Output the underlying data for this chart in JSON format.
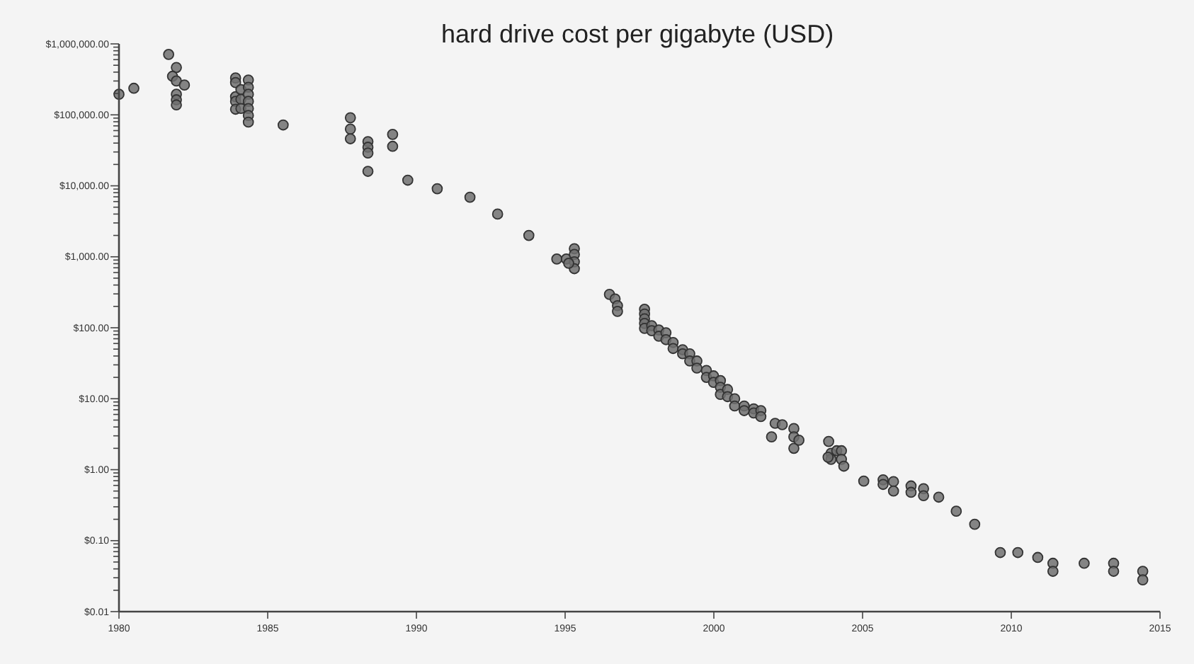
{
  "chart_data": {
    "type": "scatter",
    "title": "hard drive cost per gigabyte (USD)",
    "log": "y",
    "grid": false,
    "marker": "circle",
    "xlim": [
      1980,
      2015
    ],
    "xticks": [
      1980,
      1985,
      1990,
      1995,
      2000,
      2005,
      2010,
      2015
    ],
    "ylim": [
      0.01,
      1000000
    ],
    "yticks": [
      {
        "value": 0.01,
        "label": "$0.01"
      },
      {
        "value": 0.02,
        "label": null
      },
      {
        "value": 0.03,
        "label": null
      },
      {
        "value": 0.04,
        "label": null
      },
      {
        "value": 0.05,
        "label": null
      },
      {
        "value": 0.06,
        "label": null
      },
      {
        "value": 0.07,
        "label": null
      },
      {
        "value": 0.08,
        "label": null
      },
      {
        "value": 0.09,
        "label": null
      },
      {
        "value": 0.1,
        "label": "$0.10"
      },
      {
        "value": 0.2,
        "label": null
      },
      {
        "value": 0.3,
        "label": null
      },
      {
        "value": 0.4,
        "label": null
      },
      {
        "value": 0.5,
        "label": null
      },
      {
        "value": 0.6,
        "label": null
      },
      {
        "value": 0.7,
        "label": null
      },
      {
        "value": 0.8,
        "label": null
      },
      {
        "value": 0.9,
        "label": null
      },
      {
        "value": 1,
        "label": "$1.00"
      },
      {
        "value": 2,
        "label": null
      },
      {
        "value": 3,
        "label": null
      },
      {
        "value": 4,
        "label": null
      },
      {
        "value": 5,
        "label": null
      },
      {
        "value": 6,
        "label": null
      },
      {
        "value": 7,
        "label": null
      },
      {
        "value": 8,
        "label": null
      },
      {
        "value": 9,
        "label": null
      },
      {
        "value": 10,
        "label": "$10.00"
      },
      {
        "value": 20,
        "label": null
      },
      {
        "value": 30,
        "label": null
      },
      {
        "value": 40,
        "label": null
      },
      {
        "value": 50,
        "label": null
      },
      {
        "value": 60,
        "label": null
      },
      {
        "value": 70,
        "label": null
      },
      {
        "value": 80,
        "label": null
      },
      {
        "value": 90,
        "label": null
      },
      {
        "value": 100,
        "label": "$100.00"
      },
      {
        "value": 200,
        "label": null
      },
      {
        "value": 300,
        "label": null
      },
      {
        "value": 400,
        "label": null
      },
      {
        "value": 500,
        "label": null
      },
      {
        "value": 600,
        "label": null
      },
      {
        "value": 700,
        "label": null
      },
      {
        "value": 800,
        "label": null
      },
      {
        "value": 900,
        "label": null
      },
      {
        "value": 1000,
        "label": "$1,000.00"
      },
      {
        "value": 2000,
        "label": null
      },
      {
        "value": 3000,
        "label": null
      },
      {
        "value": 4000,
        "label": null
      },
      {
        "value": 5000,
        "label": null
      },
      {
        "value": 6000,
        "label": null
      },
      {
        "value": 7000,
        "label": null
      },
      {
        "value": 8000,
        "label": null
      },
      {
        "value": 9000,
        "label": null
      },
      {
        "value": 10000,
        "label": "$10,000.00"
      },
      {
        "value": 20000,
        "label": null
      },
      {
        "value": 30000,
        "label": null
      },
      {
        "value": 40000,
        "label": null
      },
      {
        "value": 50000,
        "label": null
      },
      {
        "value": 60000,
        "label": null
      },
      {
        "value": 70000,
        "label": null
      },
      {
        "value": 80000,
        "label": null
      },
      {
        "value": 90000,
        "label": null
      },
      {
        "value": 100000,
        "label": "$100,000.00"
      },
      {
        "value": 200000,
        "label": null
      },
      {
        "value": 300000,
        "label": null
      },
      {
        "value": 400000,
        "label": null
      },
      {
        "value": 500000,
        "label": null
      },
      {
        "value": 600000,
        "label": null
      },
      {
        "value": 700000,
        "label": null
      },
      {
        "value": 800000,
        "label": null
      },
      {
        "value": 900000,
        "label": null
      },
      {
        "value": 1000000,
        "label": "$1,000,000.00"
      }
    ],
    "x": [
      1980.0,
      1980.5,
      1981.67,
      1981.93,
      1981.8,
      1981.93,
      1982.2,
      1981.93,
      1981.93,
      1981.93,
      1983.92,
      1983.92,
      1983.92,
      1983.92,
      1983.92,
      1984.1,
      1984.1,
      1984.1,
      1984.35,
      1984.35,
      1984.35,
      1984.35,
      1984.35,
      1984.35,
      1984.35,
      1985.52,
      1987.78,
      1987.78,
      1987.78,
      1988.37,
      1988.37,
      1988.37,
      1988.37,
      1989.2,
      1989.2,
      1989.71,
      1990.7,
      1991.8,
      1992.73,
      1993.78,
      1994.72,
      1995.04,
      1995.31,
      1995.31,
      1995.31,
      1995.31,
      1995.12,
      1996.49,
      1996.68,
      1996.76,
      1996.76,
      1997.67,
      1997.67,
      1997.67,
      1997.67,
      1997.67,
      1997.91,
      1997.91,
      1998.15,
      1998.15,
      1998.39,
      1998.39,
      1998.63,
      1998.63,
      1998.95,
      1998.95,
      1999.19,
      1999.19,
      1999.43,
      1999.43,
      1999.75,
      1999.75,
      1999.99,
      1999.99,
      2000.22,
      2000.22,
      2000.22,
      2000.46,
      2000.46,
      2000.7,
      2000.7,
      2001.02,
      2001.02,
      2001.34,
      2001.34,
      2001.58,
      2001.58,
      2002.06,
      2002.3,
      2001.94,
      2002.69,
      2002.69,
      2002.69,
      2002.86,
      2003.86,
      2003.94,
      2003.94,
      2004.13,
      2004.29,
      2004.29,
      2004.37,
      2003.84,
      2005.04,
      2005.69,
      2005.69,
      2006.04,
      2006.04,
      2006.63,
      2006.63,
      2007.05,
      2007.05,
      2007.56,
      2008.15,
      2008.77,
      2009.63,
      2010.22,
      2010.89,
      2011.4,
      2011.4,
      2012.45,
      2013.44,
      2013.44,
      2014.42,
      2014.42
    ],
    "series": [
      {
        "color": "#707070",
        "values": [
          195000,
          237000,
          710000,
          465000,
          350000,
          300000,
          263000,
          195000,
          163000,
          138000,
          331000,
          285000,
          180000,
          155000,
          120000,
          227000,
          166000,
          123000,
          310000,
          245000,
          195000,
          155000,
          123000,
          98000,
          79000,
          72000,
          91000,
          63000,
          46000,
          42000,
          35000,
          29000,
          16000,
          53000,
          36000,
          12000,
          9100,
          6900,
          4000,
          2000,
          930,
          930,
          1300,
          1080,
          850,
          680,
          810,
          295,
          255,
          205,
          170,
          182,
          156,
          134,
          115,
          98,
          107,
          91,
          93,
          76,
          85,
          68,
          62,
          51,
          49,
          43,
          43,
          34,
          34,
          27,
          25,
          20,
          21,
          17,
          18,
          14.5,
          11.5,
          13.5,
          10.7,
          10,
          7.9,
          7.9,
          6.8,
          7.2,
          6.3,
          6.8,
          5.6,
          4.5,
          4.3,
          2.9,
          3.8,
          2.9,
          2.0,
          2.6,
          2.5,
          1.7,
          1.4,
          1.85,
          1.85,
          1.4,
          1.12,
          1.5,
          0.69,
          0.72,
          0.62,
          0.68,
          0.5,
          0.59,
          0.48,
          0.54,
          0.43,
          0.41,
          0.26,
          0.17,
          0.068,
          0.068,
          0.058,
          0.048,
          0.037,
          0.048,
          0.048,
          0.037,
          0.037,
          0.028
        ]
      }
    ]
  }
}
